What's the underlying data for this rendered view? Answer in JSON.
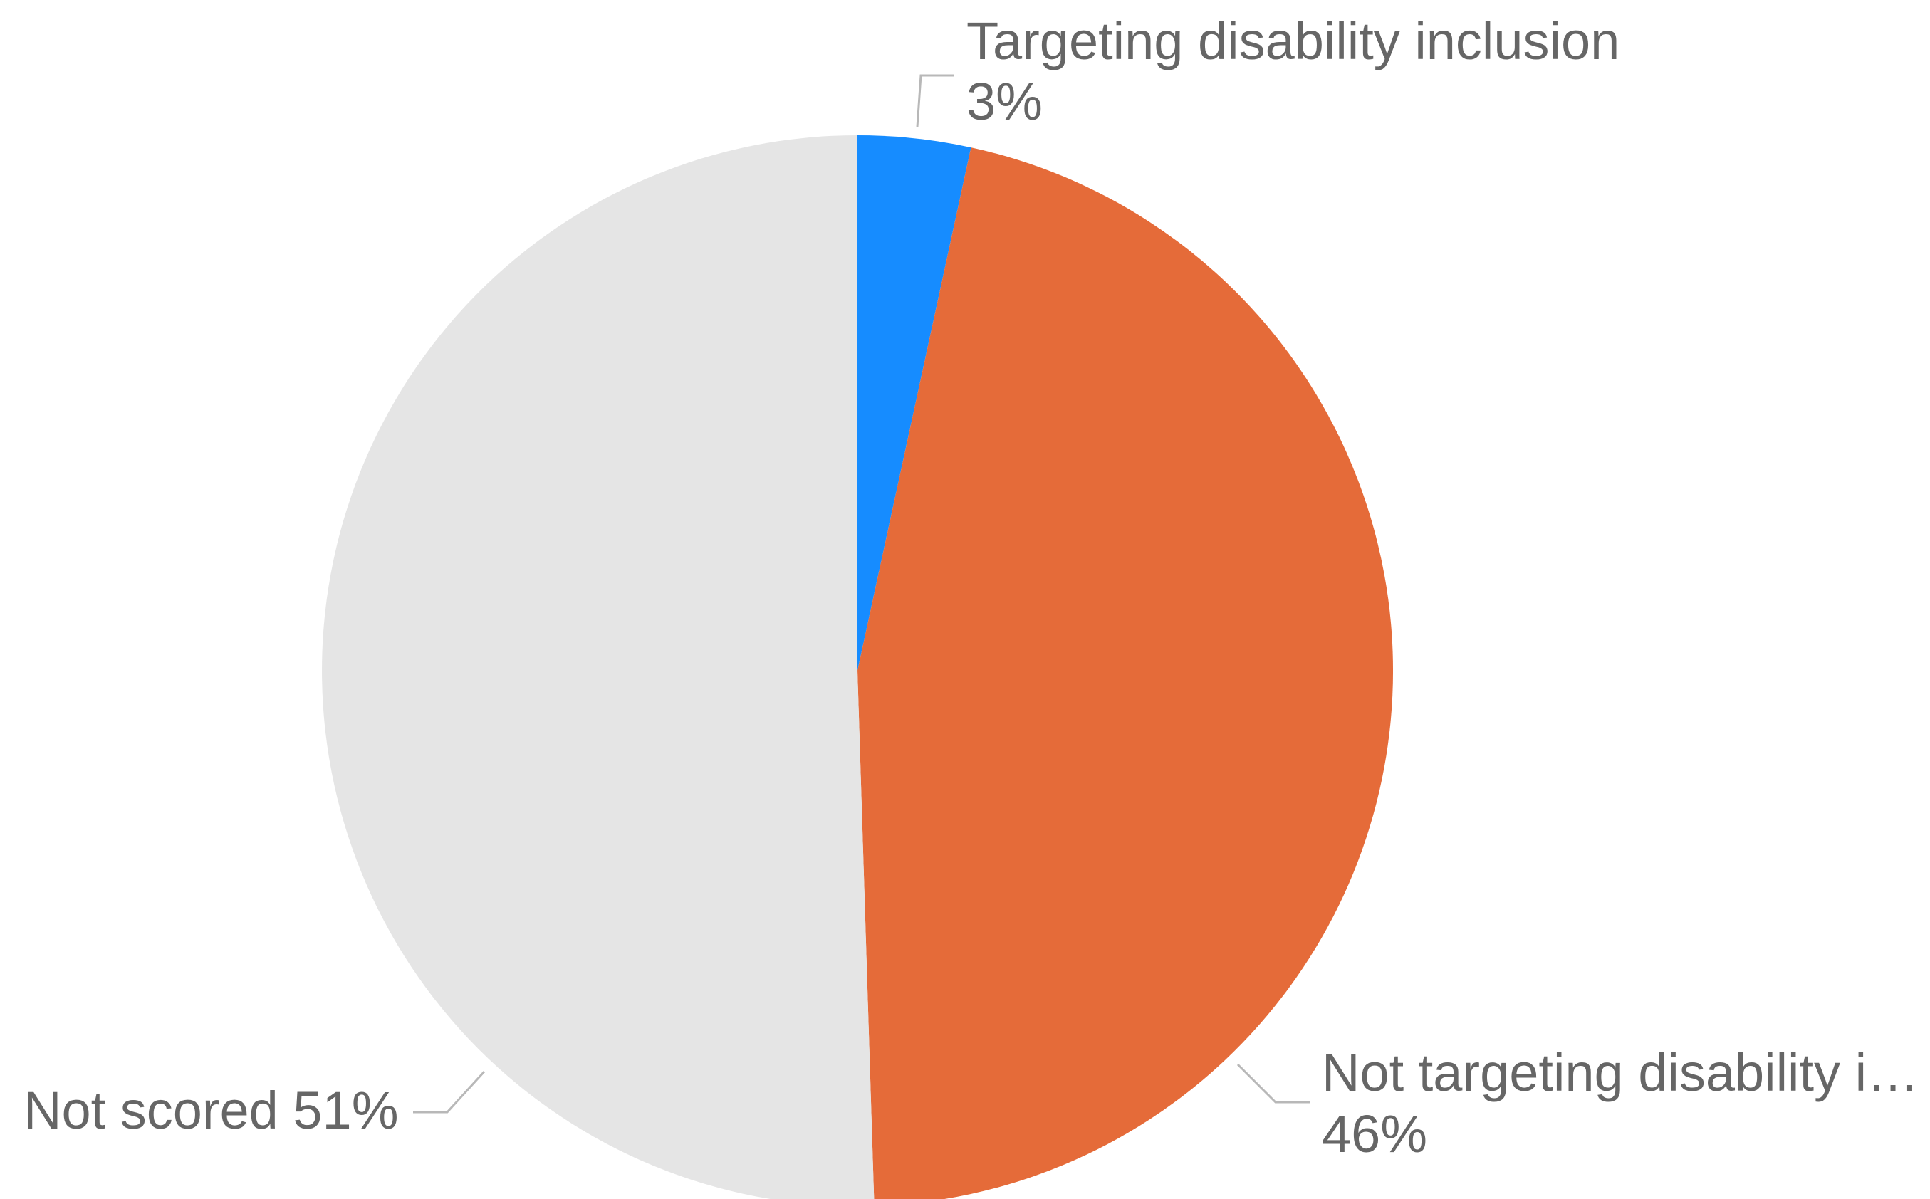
{
  "chart_data": {
    "type": "pie",
    "title": "",
    "slices": [
      {
        "label": "Targeting disability inclusion",
        "display_label": "Targeting disability inclusion",
        "percent_text": "3%",
        "value": 3.4,
        "color": "#168cff"
      },
      {
        "label": "Not targeting disability inclusion",
        "display_label": "Not targeting disability i…",
        "percent_text": "46%",
        "value": 46.1,
        "color": "#e56b39"
      },
      {
        "label": "Not scored",
        "display_label": "Not scored 51%",
        "percent_text": "51%",
        "value": 50.5,
        "color": "#e5e5e5"
      }
    ],
    "start_angle": "12 o'clock",
    "direction": "clockwise",
    "label_color": "#666666",
    "leader_line_color": "#b8b8b8"
  }
}
